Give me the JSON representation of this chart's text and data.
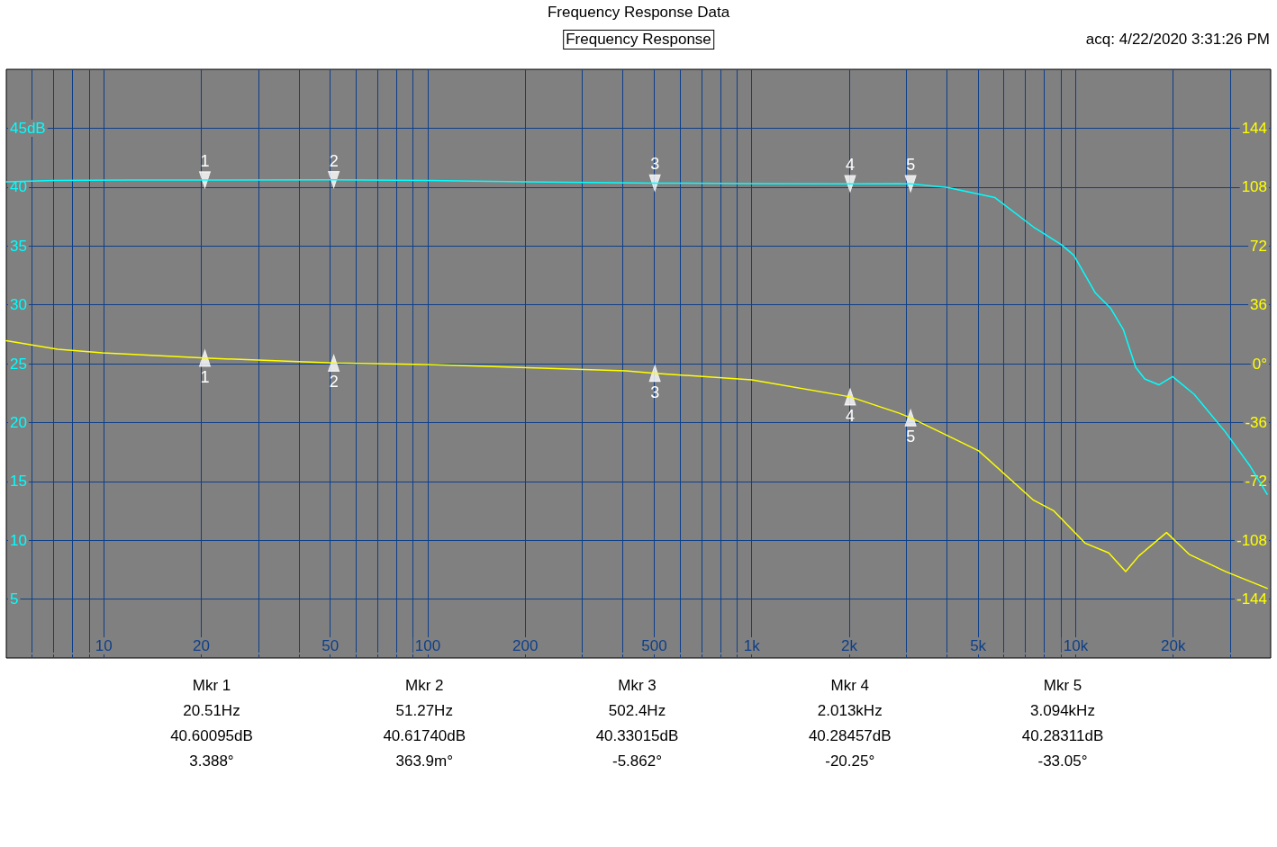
{
  "chart_data": {
    "type": "line",
    "title": "Frequency Response Data",
    "subtitle": "Frequency Response",
    "annotations": [
      "acq: 4/22/2020 3:31:26 PM",
      "Mkr 1",
      "20.51Hz",
      "40.60095dB",
      "3.388°",
      "Mkr 2",
      "51.27Hz",
      "40.61740dB",
      "363.9m°",
      "Mkr 3",
      "502.4Hz",
      "40.33015dB",
      "-5.862°",
      "Mkr 4",
      "2.013kHz",
      "40.28457dB",
      "-20.25°",
      "Mkr 5",
      "3.094kHz",
      "40.28311dB",
      "-33.05°",
      {
        "text": "1",
        "x": 20.51,
        "y": 40.6
      },
      {
        "text": "2",
        "x": 51.27,
        "y": 40.62
      },
      {
        "text": "3",
        "x": 502.4,
        "y": 40.33
      },
      {
        "text": "4",
        "x": 2013,
        "y": 40.28
      },
      {
        "text": "5",
        "x": 3094,
        "y": 40.28
      },
      "1",
      "2",
      "3",
      "4",
      "5"
    ],
    "log": "x",
    "grid": true,
    "xlim": [
      5,
      40000
    ],
    "xticks": [
      {
        "value": 6,
        "label": null
      },
      {
        "value": 7,
        "label": null
      },
      {
        "value": 8,
        "label": null
      },
      {
        "value": 9,
        "label": null
      },
      10,
      20,
      {
        "value": 30,
        "label": null
      },
      {
        "value": 40,
        "label": null
      },
      50,
      {
        "value": 60,
        "label": null
      },
      {
        "value": 70,
        "label": null
      },
      {
        "value": 80,
        "label": null
      },
      {
        "value": 90,
        "label": null
      },
      100,
      200,
      {
        "value": 300,
        "label": null
      },
      {
        "value": 400,
        "label": null
      },
      500,
      {
        "value": 600,
        "label": null
      },
      {
        "value": 700,
        "label": null
      },
      {
        "value": 800,
        "label": null
      },
      {
        "value": 900,
        "label": null
      },
      {
        "value": 1000,
        "label": "1k"
      },
      {
        "value": 2000,
        "label": "2k"
      },
      {
        "value": 3000,
        "label": null
      },
      {
        "value": 4000,
        "label": null
      },
      {
        "value": 5000,
        "label": "5k"
      },
      {
        "value": 6000,
        "label": null
      },
      {
        "value": 7000,
        "label": null
      },
      {
        "value": 8000,
        "label": null
      },
      {
        "value": 9000,
        "label": null
      },
      {
        "value": 10000,
        "label": "10k"
      },
      {
        "value": 20000,
        "label": "20k"
      },
      {
        "value": 30000,
        "label": null
      }
    ],
    "ylim": [
      0,
      50
    ],
    "yticks": [
      5,
      10,
      15,
      20,
      25,
      30,
      35,
      40,
      {
        "value": 45,
        "label": "45dB"
      }
    ],
    "y2lim": [
      -180,
      180
    ],
    "y2ticks": [
      -144,
      -108,
      -72,
      -36,
      {
        "value": 0,
        "label": "0°"
      },
      36,
      72,
      108,
      144
    ],
    "series": [
      {
        "color": "#00ffff",
        "marker": "none",
        "x": [
          5,
          7,
          12,
          20.51,
          51.27,
          100,
          200,
          502.4,
          1000,
          2013,
          2845,
          3094,
          4018,
          5637,
          7413,
          9040,
          9870,
          11510,
          12830,
          14030,
          15320,
          16340,
          18060,
          19920,
          23210,
          28980,
          34560,
          39010
        ],
        "values": [
          40.45,
          40.55,
          40.6,
          40.6,
          40.62,
          40.55,
          40.45,
          40.33,
          40.3,
          40.28,
          40.3,
          40.28,
          39.96,
          39.1,
          36.6,
          35.1,
          34.2,
          31.0,
          29.7,
          27.9,
          24.7,
          23.7,
          23.2,
          23.9,
          22.4,
          19.2,
          16.3,
          13.9
        ]
      },
      {
        "axis": "y2",
        "color": "#ffff00",
        "marker": "none",
        "x": [
          5,
          7.2,
          9.9,
          20.51,
          51.27,
          100,
          409,
          502.4,
          1000,
          2013,
          2845,
          3094,
          4018,
          5020,
          7413,
          8570,
          10720,
          12650,
          14270,
          15670,
          19080,
          22400,
          28980,
          39010
        ],
        "values": [
          14,
          8.8,
          6.6,
          3.4,
          0.4,
          -0.5,
          -4.4,
          -5.9,
          -9.9,
          -20.3,
          -30.2,
          -33.1,
          -44,
          -53.3,
          -83.5,
          -90.1,
          -109.9,
          -115.7,
          -127.1,
          -117.6,
          -103.3,
          -116.6,
          -127.1,
          -137.4
        ]
      },
      {
        "type": "scatter",
        "color": "#ffffff",
        "marker": "triangle",
        "x": [
          20.51,
          51.27,
          502.4,
          2013,
          3094
        ],
        "values": [
          40.6,
          40.62,
          40.33,
          40.28,
          40.28
        ]
      },
      {
        "type": "scatter",
        "axis": "y2",
        "color": "#ffffff",
        "marker": "triangle",
        "x": [
          20.51,
          51.27,
          502.4,
          2013,
          3094
        ],
        "values": [
          3.4,
          0.4,
          -5.9,
          -20.3,
          -33.1
        ]
      }
    ]
  }
}
